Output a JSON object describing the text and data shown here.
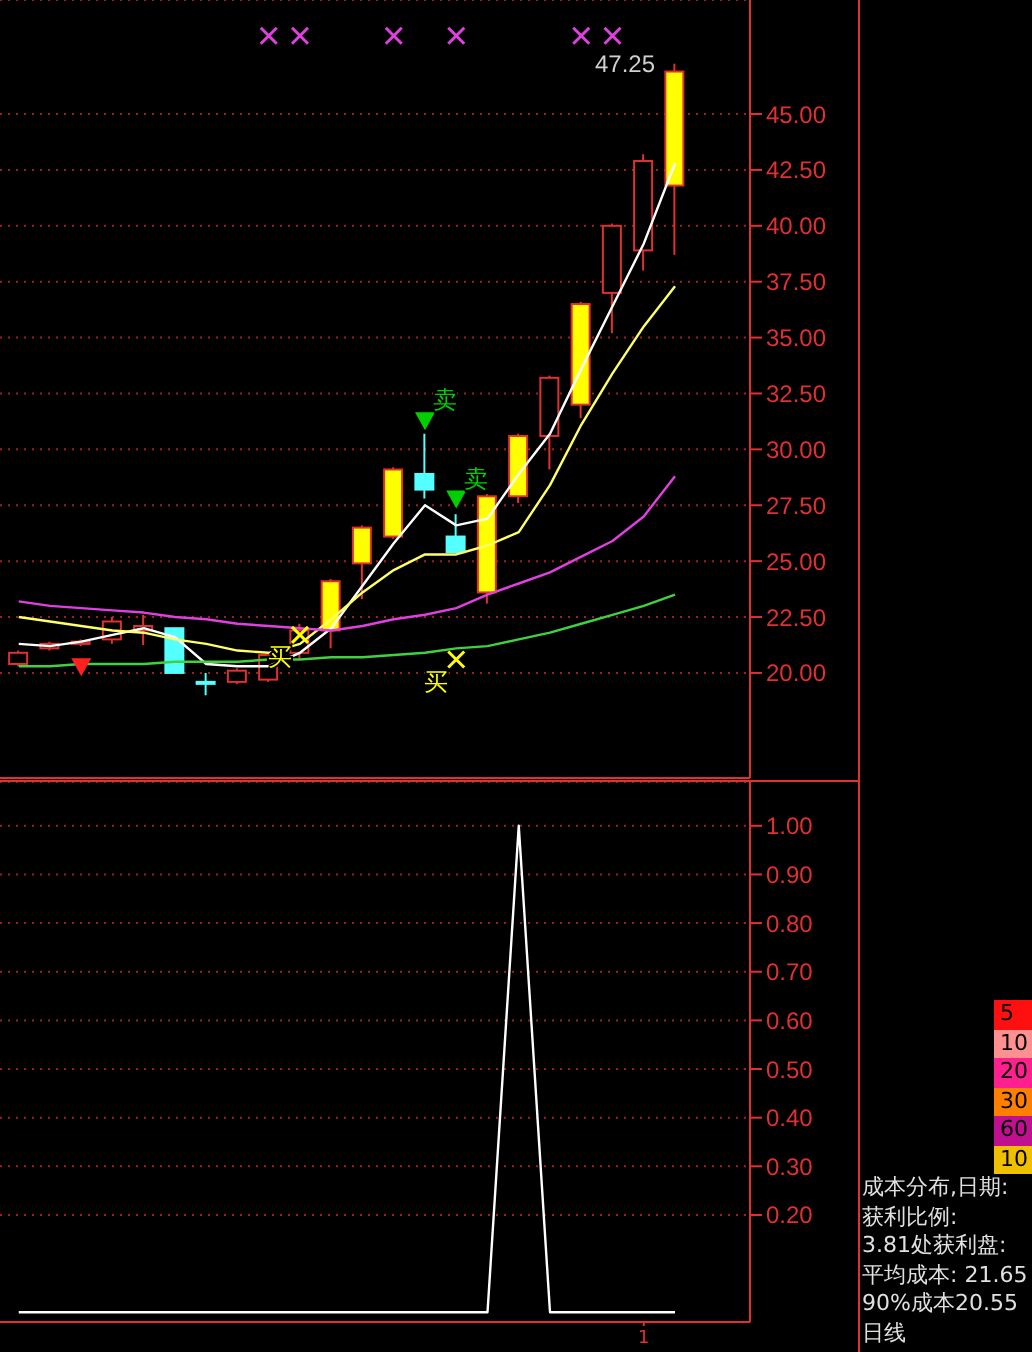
{
  "chart_data": [
    {
      "type": "candlestick",
      "categories": [
        null,
        null,
        null,
        null,
        null,
        null,
        null,
        null,
        null,
        null,
        null,
        null,
        null,
        null,
        null,
        null,
        null,
        null,
        null,
        null,
        null,
        null
      ],
      "ohlc": [
        [
          20.4,
          21.0,
          20.3,
          20.9
        ],
        [
          21.1,
          21.4,
          21.0,
          21.3
        ],
        [
          21.3,
          21.5,
          21.2,
          21.4
        ],
        [
          21.5,
          22.5,
          21.3,
          22.3
        ],
        [
          21.9,
          22.6,
          21.25,
          22.1
        ],
        [
          22.0,
          22.0,
          20.0,
          20.0
        ],
        [
          19.6,
          20.0,
          19.0,
          19.6
        ],
        [
          19.6,
          20.2,
          19.5,
          20.1
        ],
        [
          19.7,
          20.9,
          19.6,
          20.8
        ],
        [
          20.9,
          22.2,
          20.6,
          21.9
        ],
        [
          21.9,
          24.2,
          21.1,
          24.1
        ],
        [
          24.9,
          26.6,
          23.3,
          26.5
        ],
        [
          26.1,
          29.2,
          26.0,
          29.1
        ],
        [
          28.9,
          30.7,
          27.8,
          28.2
        ],
        [
          26.1,
          27.1,
          25.4,
          25.4
        ],
        [
          23.6,
          28.0,
          23.1,
          27.9
        ],
        [
          27.9,
          30.7,
          27.6,
          30.6
        ],
        [
          30.6,
          33.3,
          29.1,
          33.2
        ],
        [
          32.0,
          36.6,
          31.4,
          36.5
        ],
        [
          37.0,
          40.1,
          35.2,
          40.0
        ],
        [
          38.9,
          43.2,
          38.0,
          42.9
        ],
        [
          41.8,
          47.25,
          38.7,
          46.9
        ]
      ],
      "colors": [
        "#000000",
        "#000000",
        "#000000",
        "#000000",
        "#000000",
        "#54ffff",
        "#54ffff",
        "#000000",
        "#000000",
        "#000000",
        "#ffff00",
        "#ffff00",
        "#ffff00",
        "#54ffff",
        "#54ffff",
        "#ffff00",
        "#ffff00",
        "#000000",
        "#ffff00",
        "#000000",
        "#000000",
        "#ffff00"
      ],
      "series": [
        {
          "type": "line",
          "color": "#ffffff",
          "values": [
            21.3,
            21.2,
            21.4,
            21.7,
            22.0,
            21.6,
            20.4,
            20.3,
            20.3,
            20.9,
            22.0,
            23.9,
            25.8,
            27.5,
            26.6,
            26.9,
            28.9,
            30.7,
            33.6,
            36.4,
            39.2,
            42.8
          ]
        },
        {
          "type": "line",
          "color": "#ffff66",
          "values": [
            22.5,
            22.3,
            22.1,
            21.9,
            21.8,
            21.5,
            21.3,
            21.0,
            20.9,
            21.3,
            22.4,
            23.6,
            24.6,
            25.3,
            25.3,
            25.7,
            26.3,
            28.4,
            31.1,
            33.4,
            35.5,
            37.3
          ]
        },
        {
          "type": "line",
          "color": "#e040e0",
          "values": [
            23.2,
            23.0,
            22.9,
            22.8,
            22.7,
            22.5,
            22.4,
            22.2,
            22.1,
            22.0,
            21.9,
            22.1,
            22.4,
            22.6,
            22.9,
            23.5,
            24.0,
            24.5,
            25.2,
            25.9,
            27.0,
            28.8
          ]
        },
        {
          "type": "line",
          "color": "#40d040",
          "values": [
            20.3,
            20.3,
            20.4,
            20.4,
            20.4,
            20.5,
            20.5,
            20.5,
            20.6,
            20.6,
            20.7,
            20.7,
            20.8,
            20.9,
            21.1,
            21.2,
            21.5,
            21.8,
            22.2,
            22.6,
            23.0,
            23.5
          ]
        },
        {
          "type": "scatter",
          "name": "卖",
          "color": "#00d000",
          "marker": "triangle",
          "values": [
            null,
            null,
            null,
            null,
            null,
            null,
            null,
            null,
            null,
            null,
            null,
            null,
            null,
            31.3,
            27.8,
            null,
            null,
            null,
            null,
            null,
            null,
            null
          ]
        },
        {
          "type": "scatter",
          "name": "买",
          "color": "#ffff00",
          "marker": "cross",
          "values": [
            null,
            null,
            null,
            null,
            null,
            null,
            null,
            null,
            null,
            21.7,
            null,
            null,
            null,
            null,
            20.6,
            null,
            null,
            null,
            null,
            null,
            null,
            null
          ]
        },
        {
          "type": "scatter",
          "color": "#ff2020",
          "marker": "triangle",
          "values": [
            null,
            null,
            20.3,
            null,
            null,
            null,
            null,
            null,
            null,
            null,
            null,
            null,
            null,
            null,
            null,
            null,
            null,
            null,
            null,
            null,
            null,
            null
          ]
        },
        {
          "type": "scatter",
          "color": "#e040e0",
          "marker": "cross",
          "values": [
            null,
            null,
            null,
            null,
            null,
            null,
            null,
            null,
            48.5,
            48.5,
            null,
            null,
            48.5,
            null,
            48.5,
            null,
            null,
            null,
            48.5,
            48.5,
            null,
            null
          ]
        }
      ],
      "ylim": [
        15.3,
        50.1
      ],
      "yticks": [
        {
          "value": 20,
          "label": "20.00"
        },
        {
          "value": 22.5,
          "label": "22.50"
        },
        {
          "value": 25,
          "label": "25.00"
        },
        {
          "value": 27.5,
          "label": "27.50"
        },
        {
          "value": 30,
          "label": "30.00"
        },
        {
          "value": 32.5,
          "label": "32.50"
        },
        {
          "value": 35,
          "label": "35.00"
        },
        {
          "value": 37.5,
          "label": "37.50"
        },
        {
          "value": 40,
          "label": "40.00"
        },
        {
          "value": 42.5,
          "label": "42.50"
        },
        {
          "value": 45,
          "label": "45.00"
        }
      ],
      "grid": "y",
      "tick_labels": "y",
      "annotations": [
        "47.25"
      ]
    },
    {
      "type": "line",
      "categories": [
        null,
        null,
        null,
        null,
        null,
        null,
        null,
        null,
        null,
        null,
        null,
        null,
        null,
        null,
        null,
        null,
        null,
        null,
        null,
        null,
        "1",
        null
      ],
      "series": [
        {
          "color": "#ffffff",
          "values": [
            0,
            0,
            0,
            0,
            0,
            0,
            0,
            0,
            0,
            0,
            0,
            0,
            0,
            0,
            0,
            0,
            1,
            0,
            0,
            0,
            0,
            0
          ]
        }
      ],
      "ylim": [
        -0.02,
        1.09
      ],
      "yticks": [
        {
          "value": 0.2,
          "label": "0.20"
        },
        {
          "value": 0.3,
          "label": "0.30"
        },
        {
          "value": 0.4,
          "label": "0.40"
        },
        {
          "value": 0.5,
          "label": "0.50"
        },
        {
          "value": 0.6,
          "label": "0.60"
        },
        {
          "value": 0.7,
          "label": "0.70"
        },
        {
          "value": 0.8,
          "label": "0.80"
        },
        {
          "value": 0.9,
          "label": "0.90"
        },
        {
          "value": 1,
          "label": "1.00"
        }
      ],
      "grid": "y",
      "annotations": [
        "5",
        "10",
        "20",
        "30",
        "60",
        "10",
        "成本分布,日期:",
        "获利比例:",
        "3.81处获利盘:",
        "平均成本: 21.65",
        "90%成本20.55",
        "日线"
      ]
    }
  ]
}
